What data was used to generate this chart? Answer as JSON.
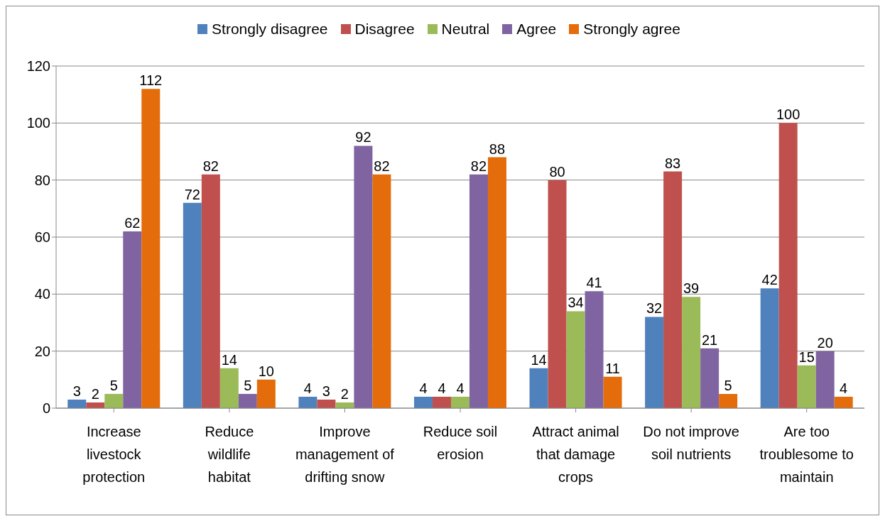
{
  "chart_data": {
    "type": "bar",
    "categories": [
      "Increase livestock protection",
      "Reduce wildlife habitat",
      "Improve management of drifting snow",
      "Reduce soil erosion",
      "Attract animal that damage crops",
      "Do not improve soil nutrients",
      "Are too troublesome to maintain"
    ],
    "series": [
      {
        "name": "Strongly disagree",
        "color": "#4f81bd",
        "values": [
          3,
          72,
          4,
          4,
          14,
          32,
          42
        ]
      },
      {
        "name": "Disagree",
        "color": "#c0504d",
        "values": [
          2,
          82,
          3,
          4,
          80,
          83,
          100
        ]
      },
      {
        "name": "Neutral",
        "color": "#9bbb59",
        "values": [
          5,
          14,
          2,
          4,
          34,
          39,
          15
        ]
      },
      {
        "name": "Agree",
        "color": "#8064a2",
        "values": [
          62,
          5,
          92,
          82,
          41,
          21,
          20
        ]
      },
      {
        "name": "Strongly agree",
        "color": "#e46c0a",
        "values": [
          112,
          10,
          82,
          88,
          11,
          5,
          4
        ]
      }
    ],
    "ylim": [
      0,
      120
    ],
    "yticks": [
      0,
      20,
      40,
      60,
      80,
      100,
      120
    ],
    "grid": "y",
    "legend": "top",
    "data_labels": true
  }
}
